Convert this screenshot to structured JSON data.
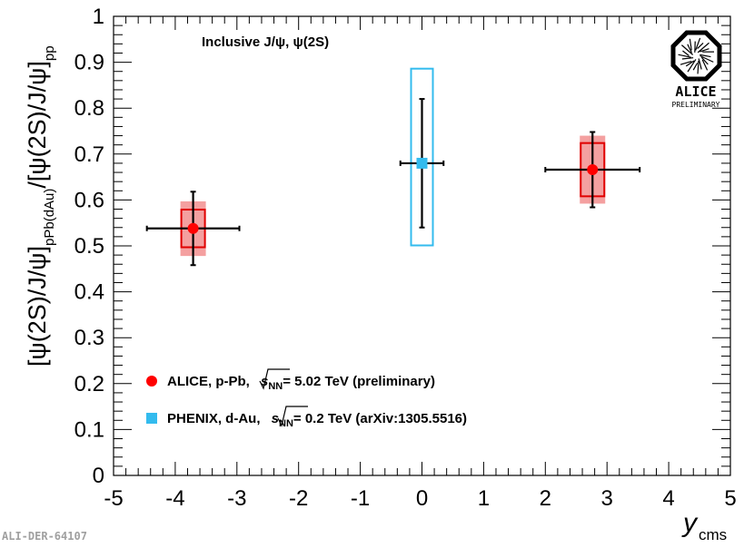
{
  "colors": {
    "alice_marker": "#ff0000",
    "alice_syst_fill": "#f4a0a0",
    "alice_syst_box": "#e00000",
    "phenix_marker": "#33bbee",
    "phenix_box": "#33bbee",
    "error_bar": "#000000"
  },
  "logo": {
    "name": "ALICE",
    "label": "PRELIMINARY",
    "icon": "alice-star-octagon-icon"
  },
  "figure_id": "ALI-DER-64107",
  "chart_data": {
    "type": "scatter",
    "title": "Inclusive J/ψ,  ψ(2S)",
    "xlabel": "y",
    "xlabel_sub": "cms",
    "ylabel_parts": [
      "[ψ(2S)/J/ψ]",
      "pPb(dAu)",
      "/[ψ(2S)/J/ψ]",
      "pp"
    ],
    "xlim": [
      -5,
      5
    ],
    "ylim": [
      0,
      1
    ],
    "x_ticks": [
      "-5",
      "-4",
      "-3",
      "-2",
      "-1",
      "0",
      "1",
      "2",
      "3",
      "4",
      "5"
    ],
    "y_ticks": [
      "0",
      "0.1",
      "0.2",
      "0.3",
      "0.4",
      "0.5",
      "0.6",
      "0.7",
      "0.8",
      "0.9",
      "1"
    ],
    "series": [
      {
        "name": "ALICE",
        "marker": "circle",
        "legend": {
          "pre": "ALICE, p-Pb, ",
          "sqrt": "s",
          "sub": "NN",
          "post": "= 5.02 TeV  (preliminary)"
        },
        "points": [
          {
            "x": -3.71,
            "y": 0.538,
            "xerr": [
              0.75,
              0.75
            ],
            "stat": 0.08,
            "syst_box": [
              0.497,
              0.579
            ],
            "syst_fill": [
              0.478,
              0.597
            ]
          },
          {
            "x": 2.765,
            "y": 0.666,
            "xerr": [
              0.765,
              0.765
            ],
            "stat": 0.082,
            "syst_box": [
              0.608,
              0.724
            ],
            "syst_fill": [
              0.592,
              0.74
            ]
          }
        ]
      },
      {
        "name": "PHENIX",
        "marker": "square",
        "legend": {
          "pre": "PHENIX, d-Au, ",
          "sqrt": "s",
          "sub": "NN",
          "post": "= 0.2 TeV (arXiv:1305.5516)"
        },
        "points": [
          {
            "x": 0.0,
            "y": 0.68,
            "xerr": [
              0.35,
              0.35
            ],
            "stat": 0.14,
            "syst_box": [
              0.501,
              0.886
            ]
          }
        ]
      }
    ]
  }
}
